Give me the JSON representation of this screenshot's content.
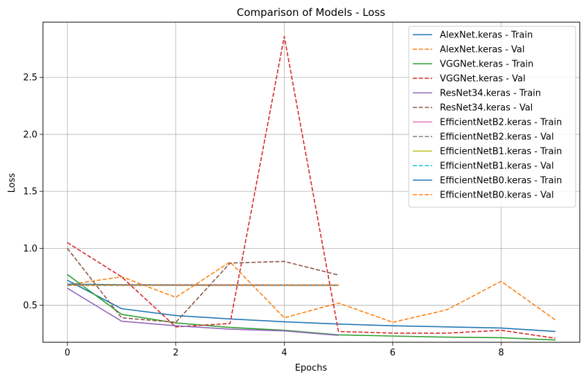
{
  "chart_data": {
    "type": "line",
    "title": "Comparison of Models - Loss",
    "xlabel": "Epochs",
    "ylabel": "Loss",
    "xlim": [
      -0.45,
      9.45
    ],
    "ylim": [
      0.175,
      2.985
    ],
    "xticks": [
      0,
      2,
      4,
      6,
      8
    ],
    "yticks": [
      0.5,
      1.0,
      1.5,
      2.0,
      2.5
    ],
    "ytick_labels": [
      "0.5",
      "1.0",
      "1.5",
      "2.0",
      "2.5"
    ],
    "grid": true,
    "legend_position": "top-right",
    "series": [
      {
        "name": "AlexNet.keras - Train",
        "color": "#1f77b4",
        "style": "solid",
        "x": [
          0,
          1,
          2,
          3,
          4,
          5,
          6,
          7,
          8,
          9
        ],
        "values": [
          0.72,
          0.47,
          0.41,
          0.38,
          0.355,
          0.335,
          0.32,
          0.31,
          0.3,
          0.27
        ]
      },
      {
        "name": "AlexNet.keras - Val",
        "color": "#ff7f0e",
        "style": "dashed",
        "x": [
          0,
          1,
          2,
          3,
          4,
          5,
          6,
          7,
          8,
          9
        ],
        "values": [
          0.68,
          0.75,
          0.57,
          0.88,
          0.39,
          0.52,
          0.35,
          0.46,
          0.71,
          0.37
        ]
      },
      {
        "name": "VGGNet.keras - Train",
        "color": "#2ca02c",
        "style": "solid",
        "x": [
          0,
          1,
          2,
          3,
          4,
          5,
          6,
          7,
          8,
          9
        ],
        "values": [
          0.77,
          0.42,
          0.345,
          0.305,
          0.28,
          0.24,
          0.23,
          0.22,
          0.215,
          0.195
        ]
      },
      {
        "name": "VGGNet.keras - Val",
        "color": "#d62728",
        "style": "dashed",
        "x": [
          0,
          1,
          2,
          3,
          4,
          5,
          6,
          7,
          8,
          9
        ],
        "values": [
          1.05,
          0.75,
          0.31,
          0.34,
          2.86,
          0.27,
          0.255,
          0.255,
          0.28,
          0.21
        ]
      },
      {
        "name": "ResNet34.keras - Train",
        "color": "#9467bd",
        "style": "solid",
        "x": [
          0,
          1,
          2,
          3,
          4,
          5
        ],
        "values": [
          0.65,
          0.36,
          0.32,
          0.29,
          0.275,
          0.235
        ]
      },
      {
        "name": "ResNet34.keras - Val",
        "color": "#8c564b",
        "style": "dashed",
        "x": [
          0,
          1,
          2,
          3,
          4,
          5
        ],
        "values": [
          1.0,
          0.39,
          0.35,
          0.87,
          0.885,
          0.765
        ]
      },
      {
        "name": "EfficientNetB2.keras - Train",
        "color": "#e377c2",
        "style": "solid",
        "x": [
          0,
          1,
          2,
          3,
          4,
          5
        ],
        "values": [
          0.683,
          0.68,
          0.679,
          0.679,
          0.678,
          0.678
        ]
      },
      {
        "name": "EfficientNetB2.keras - Val",
        "color": "#7f7f7f",
        "style": "dashed",
        "x": [
          0,
          1,
          2,
          3,
          4,
          5
        ],
        "values": [
          0.674,
          0.674,
          0.674,
          0.674,
          0.674,
          0.674
        ]
      },
      {
        "name": "EfficientNetB1.keras - Train",
        "color": "#bcbd22",
        "style": "solid",
        "x": [
          0,
          1,
          2,
          3,
          4,
          5
        ],
        "values": [
          0.681,
          0.678,
          0.677,
          0.677,
          0.676,
          0.676
        ]
      },
      {
        "name": "EfficientNetB1.keras - Val",
        "color": "#17becf",
        "style": "dashed",
        "x": [
          0,
          1,
          2,
          3,
          4,
          5
        ],
        "values": [
          0.675,
          0.675,
          0.675,
          0.675,
          0.675,
          0.675
        ]
      },
      {
        "name": "EfficientNetB0.keras - Train",
        "color": "#1f77b4",
        "style": "solid",
        "x": [
          0,
          1,
          2,
          3,
          4,
          5
        ],
        "values": [
          0.685,
          0.679,
          0.678,
          0.677,
          0.677,
          0.676
        ]
      },
      {
        "name": "EfficientNetB0.keras - Val",
        "color": "#ff7f0e",
        "style": "dashed",
        "x": [
          0,
          1,
          2,
          3,
          4,
          5
        ],
        "values": [
          0.676,
          0.676,
          0.676,
          0.676,
          0.676,
          0.676
        ]
      }
    ]
  }
}
